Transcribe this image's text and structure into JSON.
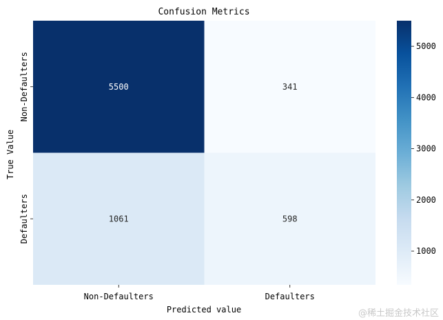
{
  "watermark": "@稀土掘金技术社区",
  "chart_data": {
    "type": "heatmap",
    "title": "Confusion Metrics",
    "xlabel": "Predicted value",
    "ylabel": "True Value",
    "x_categories": [
      "Non-Defaulters",
      "Defaulters"
    ],
    "y_categories": [
      "Non-Defaulters",
      "Defaulters"
    ],
    "values": [
      [
        5500,
        341
      ],
      [
        1061,
        598
      ]
    ],
    "colormap": "Blues",
    "vmin": 341,
    "vmax": 5500,
    "colorbar_ticks": [
      1000,
      2000,
      3000,
      4000,
      5000
    ]
  }
}
